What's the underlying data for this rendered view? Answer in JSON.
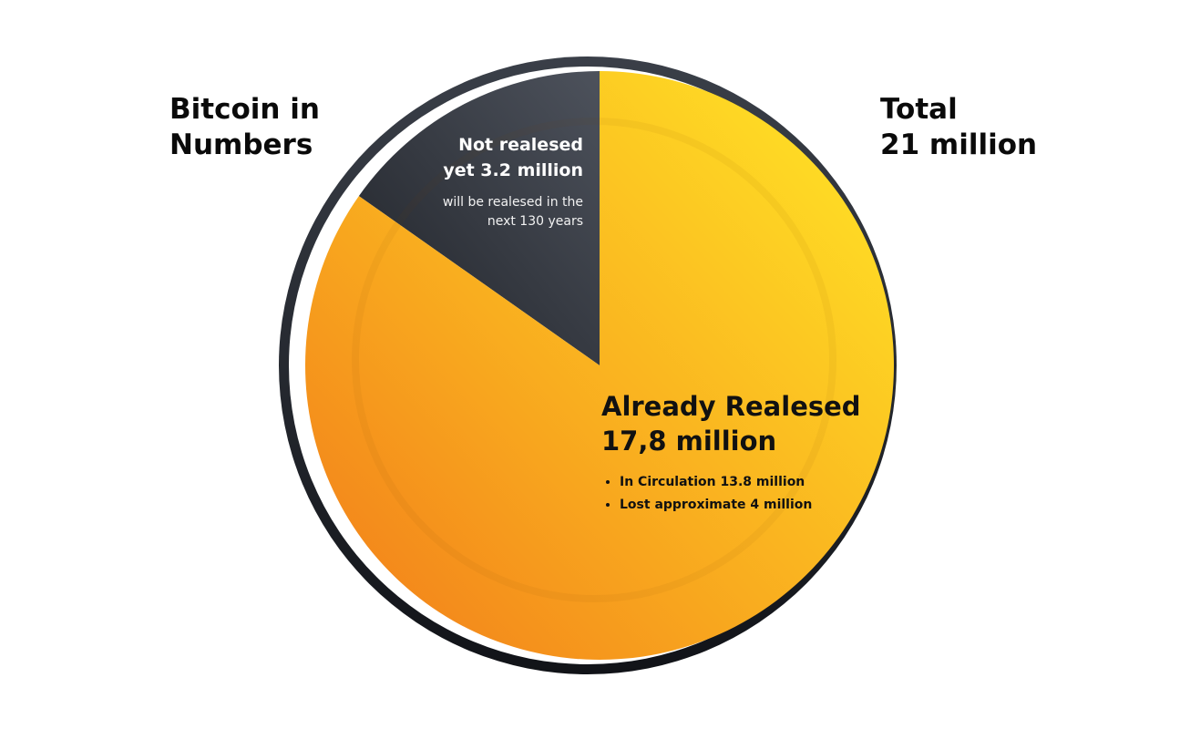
{
  "title_lines": [
    "Bitcoin in",
    "Numbers"
  ],
  "total_lines": [
    "Total",
    "21 million"
  ],
  "chart_data": {
    "type": "pie",
    "total": 21,
    "unit": "million",
    "slices": [
      {
        "label_lines": [
          "Not realesed",
          "yet 3.2 million"
        ],
        "note_lines": [
          "will be realesed in the",
          "next 130 years"
        ],
        "value": 3.2,
        "color": "#2a2e36"
      },
      {
        "label_lines": [
          "Already Realesed",
          "17,8 million"
        ],
        "value": 17.8,
        "color": "#f8a91c",
        "breakdown": [
          {
            "label": "In Circulation 13.8 million",
            "value": 13.8
          },
          {
            "label": "Lost approximate 4 million",
            "value": 4
          }
        ]
      }
    ]
  },
  "colors": {
    "ring_outer": "#1b1e24",
    "ring_gap": "#ffffff",
    "gold_light": "#ffde26",
    "gold_dark": "#f27f1a",
    "dark_slice": "#2a2e36"
  }
}
